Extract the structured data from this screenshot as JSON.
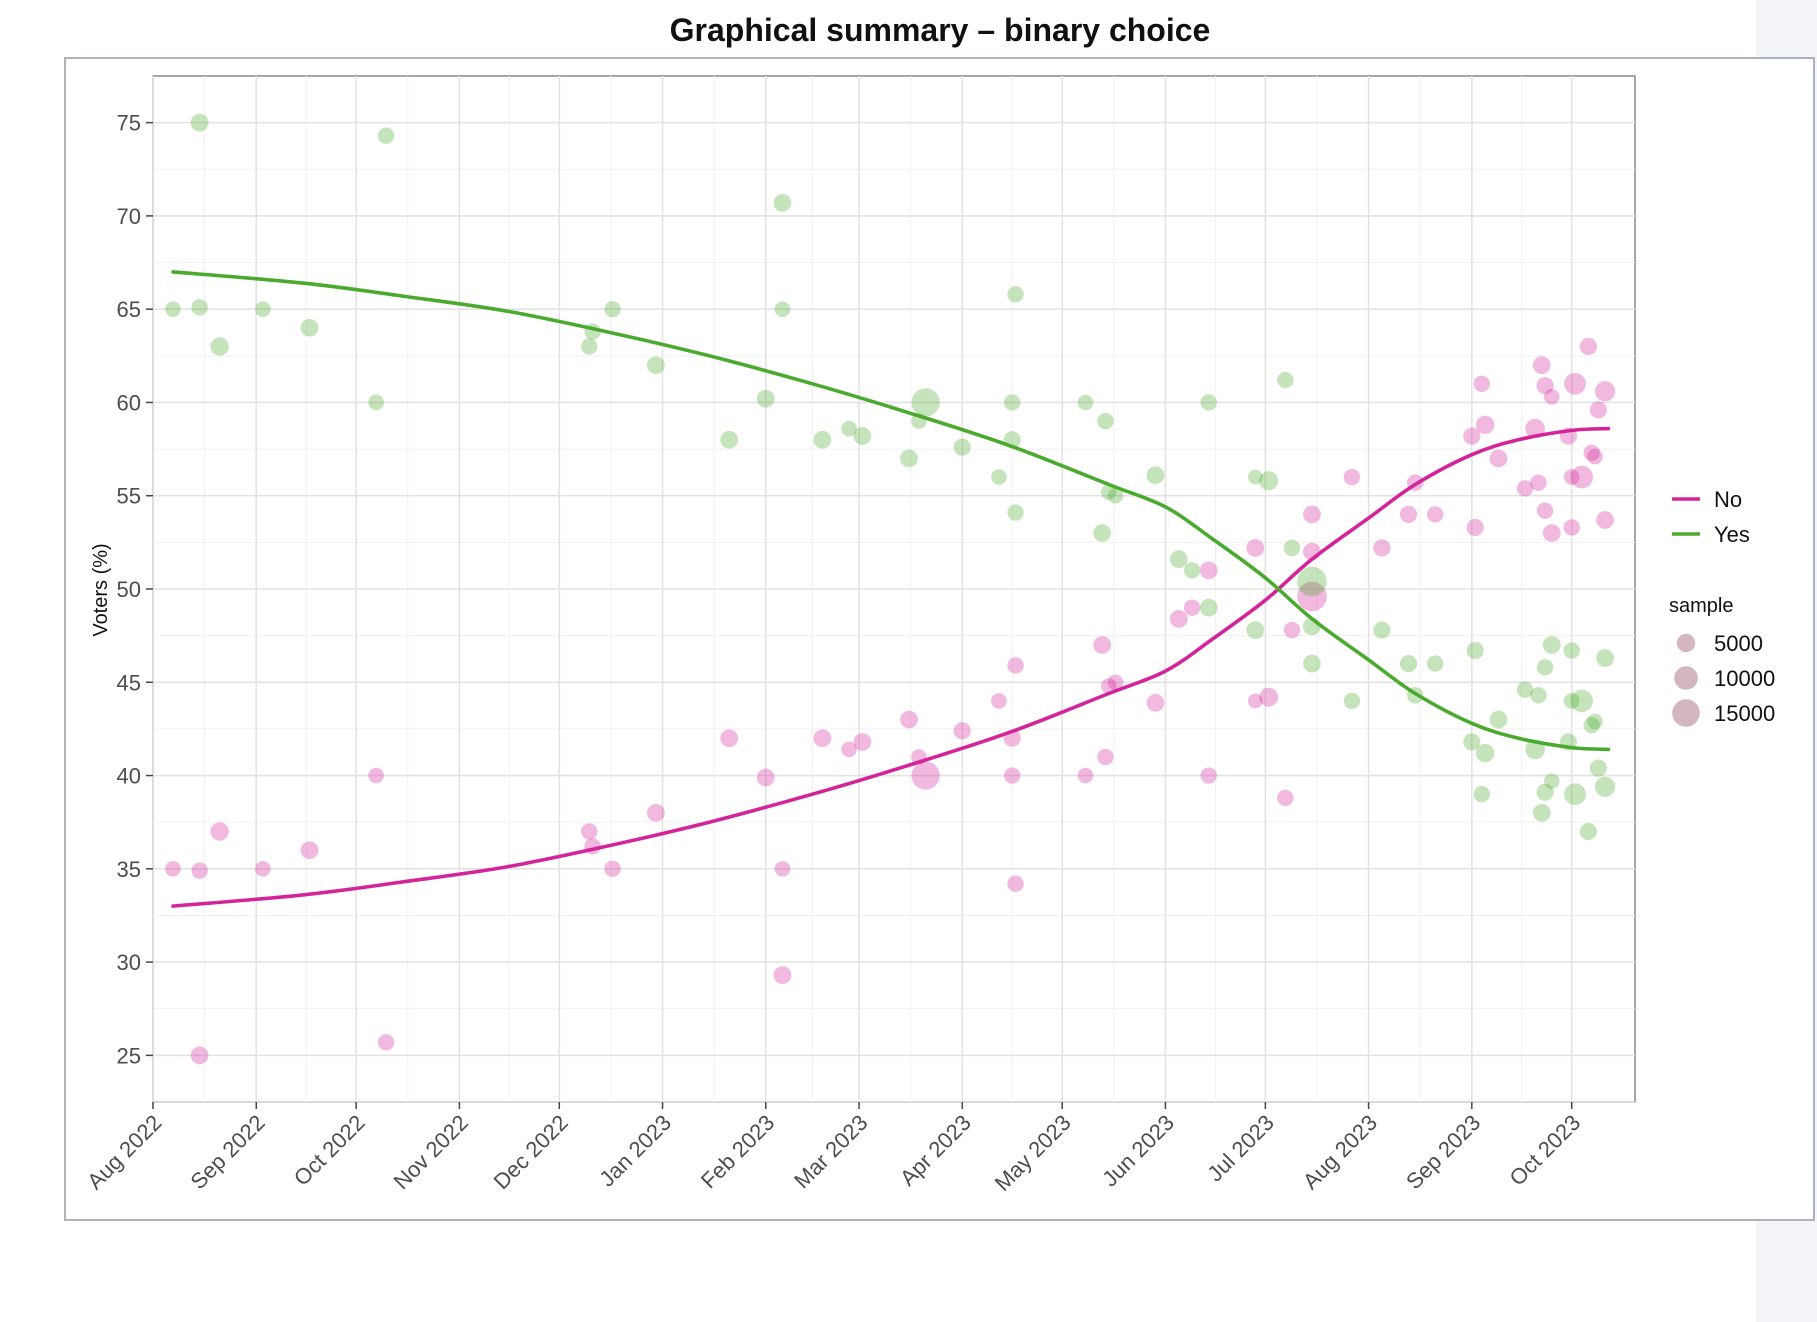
{
  "chart_data": {
    "type": "scatter",
    "title": "Graphical summary – binary choice",
    "ylabel": "Voters (%)",
    "xlabel": "",
    "ylim": [
      22.5,
      77.5
    ],
    "xlim": [
      "2022-08-01",
      "2023-10-20"
    ],
    "y_ticks": [
      25,
      30,
      35,
      40,
      45,
      50,
      55,
      60,
      65,
      70,
      75
    ],
    "x_ticks": [
      {
        "date": "2022-08-01",
        "label": "Aug 2022"
      },
      {
        "date": "2022-09-01",
        "label": "Sep 2022"
      },
      {
        "date": "2022-10-01",
        "label": "Oct 2022"
      },
      {
        "date": "2022-11-01",
        "label": "Nov 2022"
      },
      {
        "date": "2022-12-01",
        "label": "Dec 2022"
      },
      {
        "date": "2023-01-01",
        "label": "Jan 2023"
      },
      {
        "date": "2023-02-01",
        "label": "Feb 2023"
      },
      {
        "date": "2023-03-01",
        "label": "Mar 2023"
      },
      {
        "date": "2023-04-01",
        "label": "Apr 2023"
      },
      {
        "date": "2023-05-01",
        "label": "May 2023"
      },
      {
        "date": "2023-06-01",
        "label": "Jun 2023"
      },
      {
        "date": "2023-07-01",
        "label": "Jul 2023"
      },
      {
        "date": "2023-08-01",
        "label": "Aug 2023"
      },
      {
        "date": "2023-09-01",
        "label": "Sep 2023"
      },
      {
        "date": "2023-10-01",
        "label": "Oct 2023"
      }
    ],
    "grid": true,
    "legend_position": "right",
    "size_legend": {
      "title": "sample",
      "values": [
        5000,
        10000,
        15000
      ],
      "color": "#b07a88"
    },
    "series": [
      {
        "name": "No",
        "color": "#d4249a",
        "trend": [
          [
            "2022-08-07",
            33.0
          ],
          [
            "2022-09-15",
            33.6
          ],
          [
            "2022-10-15",
            34.3
          ],
          [
            "2022-11-15",
            35.1
          ],
          [
            "2022-12-15",
            36.2
          ],
          [
            "2023-01-15",
            37.5
          ],
          [
            "2023-02-15",
            39.0
          ],
          [
            "2023-03-15",
            40.5
          ],
          [
            "2023-04-15",
            42.3
          ],
          [
            "2023-05-15",
            44.4
          ],
          [
            "2023-06-01",
            45.6
          ],
          [
            "2023-06-15",
            47.3
          ],
          [
            "2023-07-01",
            49.4
          ],
          [
            "2023-07-15",
            51.6
          ],
          [
            "2023-08-01",
            53.8
          ],
          [
            "2023-08-15",
            55.6
          ],
          [
            "2023-09-01",
            57.2
          ],
          [
            "2023-09-15",
            58.0
          ],
          [
            "2023-10-01",
            58.5
          ],
          [
            "2023-10-12",
            58.6
          ]
        ],
        "points": [
          [
            "2022-08-07",
            35.0,
            3000
          ],
          [
            "2022-08-15",
            34.9,
            3500
          ],
          [
            "2022-08-15",
            25.0,
            4500
          ],
          [
            "2022-08-21",
            37.0,
            5000
          ],
          [
            "2022-09-03",
            35.0,
            3000
          ],
          [
            "2022-09-17",
            36.0,
            4500
          ],
          [
            "2022-10-07",
            40.0,
            3000
          ],
          [
            "2022-10-10",
            25.7,
            3500
          ],
          [
            "2022-12-10",
            37.0,
            3500
          ],
          [
            "2022-12-11",
            36.2,
            3500
          ],
          [
            "2022-12-17",
            35.0,
            3500
          ],
          [
            "2022-12-30",
            38.0,
            4500
          ],
          [
            "2023-01-21",
            42.0,
            4500
          ],
          [
            "2023-02-01",
            39.9,
            4500
          ],
          [
            "2023-02-06",
            35.0,
            3000
          ],
          [
            "2023-02-06",
            29.3,
            4500
          ],
          [
            "2023-02-18",
            42.0,
            4500
          ],
          [
            "2023-02-26",
            41.4,
            3000
          ],
          [
            "2023-03-02",
            41.8,
            4500
          ],
          [
            "2023-03-16",
            43.0,
            4500
          ],
          [
            "2023-03-19",
            41.0,
            3000
          ],
          [
            "2023-03-21",
            40.0,
            16000
          ],
          [
            "2023-04-01",
            42.4,
            4000
          ],
          [
            "2023-04-12",
            44.0,
            3000
          ],
          [
            "2023-04-16",
            42.0,
            4000
          ],
          [
            "2023-04-16",
            40.0,
            3500
          ],
          [
            "2023-04-17",
            45.9,
            3500
          ],
          [
            "2023-04-17",
            34.2,
            3500
          ],
          [
            "2023-05-08",
            40.0,
            3000
          ],
          [
            "2023-05-13",
            47.0,
            4500
          ],
          [
            "2023-05-14",
            41.0,
            3500
          ],
          [
            "2023-05-15",
            44.8,
            3000
          ],
          [
            "2023-05-17",
            45.0,
            3000
          ],
          [
            "2023-05-29",
            43.9,
            4500
          ],
          [
            "2023-06-05",
            48.4,
            4500
          ],
          [
            "2023-06-09",
            49.0,
            3500
          ],
          [
            "2023-06-14",
            51.0,
            4500
          ],
          [
            "2023-06-14",
            40.0,
            3500
          ],
          [
            "2023-06-28",
            52.2,
            4500
          ],
          [
            "2023-06-28",
            44.0,
            2500
          ],
          [
            "2023-07-02",
            44.2,
            5500
          ],
          [
            "2023-07-07",
            38.8,
            3500
          ],
          [
            "2023-07-09",
            47.8,
            3500
          ],
          [
            "2023-07-15",
            54.0,
            4500
          ],
          [
            "2023-07-15",
            52.0,
            4500
          ],
          [
            "2023-07-15",
            49.6,
            18000
          ],
          [
            "2023-07-27",
            56.0,
            3500
          ],
          [
            "2023-08-05",
            52.2,
            4000
          ],
          [
            "2023-08-13",
            54.0,
            4000
          ],
          [
            "2023-08-15",
            55.7,
            3500
          ],
          [
            "2023-08-21",
            54.0,
            3500
          ],
          [
            "2023-09-01",
            58.2,
            4000
          ],
          [
            "2023-09-02",
            53.3,
            4000
          ],
          [
            "2023-09-04",
            61.0,
            3500
          ],
          [
            "2023-09-05",
            58.8,
            5000
          ],
          [
            "2023-09-09",
            57.0,
            4500
          ],
          [
            "2023-09-17",
            55.4,
            3500
          ],
          [
            "2023-09-20",
            58.6,
            6000
          ],
          [
            "2023-09-21",
            55.7,
            3500
          ],
          [
            "2023-09-22",
            62.0,
            4500
          ],
          [
            "2023-09-23",
            60.9,
            4000
          ],
          [
            "2023-09-23",
            54.2,
            3500
          ],
          [
            "2023-09-25",
            60.3,
            3000
          ],
          [
            "2023-09-25",
            53.0,
            4500
          ],
          [
            "2023-09-30",
            58.2,
            4000
          ],
          [
            "2023-10-01",
            56.0,
            3000
          ],
          [
            "2023-10-01",
            53.3,
            3500
          ],
          [
            "2023-10-02",
            61.0,
            8000
          ],
          [
            "2023-10-04",
            56.0,
            9000
          ],
          [
            "2023-10-06",
            63.0,
            4000
          ],
          [
            "2023-10-07",
            57.3,
            3500
          ],
          [
            "2023-10-08",
            57.1,
            3000
          ],
          [
            "2023-10-09",
            59.6,
            4000
          ],
          [
            "2023-10-11",
            60.6,
            6500
          ],
          [
            "2023-10-11",
            53.7,
            4500
          ]
        ]
      },
      {
        "name": "Yes",
        "color": "#4aaa2e",
        "trend": [
          [
            "2022-08-07",
            67.0
          ],
          [
            "2022-09-15",
            66.4
          ],
          [
            "2022-10-15",
            65.7
          ],
          [
            "2022-11-15",
            64.9
          ],
          [
            "2022-12-15",
            63.8
          ],
          [
            "2023-01-15",
            62.5
          ],
          [
            "2023-02-15",
            61.0
          ],
          [
            "2023-03-15",
            59.5
          ],
          [
            "2023-04-15",
            57.7
          ],
          [
            "2023-05-15",
            55.6
          ],
          [
            "2023-06-01",
            54.4
          ],
          [
            "2023-06-15",
            52.7
          ],
          [
            "2023-07-01",
            50.6
          ],
          [
            "2023-07-15",
            48.4
          ],
          [
            "2023-08-01",
            46.2
          ],
          [
            "2023-08-15",
            44.4
          ],
          [
            "2023-09-01",
            42.8
          ],
          [
            "2023-09-15",
            42.0
          ],
          [
            "2023-10-01",
            41.5
          ],
          [
            "2023-10-12",
            41.4
          ]
        ],
        "points": [
          [
            "2022-08-07",
            65.0,
            3000
          ],
          [
            "2022-08-15",
            65.1,
            3500
          ],
          [
            "2022-08-15",
            75.0,
            4500
          ],
          [
            "2022-08-21",
            63.0,
            5000
          ],
          [
            "2022-09-03",
            65.0,
            3000
          ],
          [
            "2022-09-17",
            64.0,
            4500
          ],
          [
            "2022-10-07",
            60.0,
            3000
          ],
          [
            "2022-10-10",
            74.3,
            3500
          ],
          [
            "2022-12-10",
            63.0,
            3500
          ],
          [
            "2022-12-11",
            63.8,
            3500
          ],
          [
            "2022-12-17",
            65.0,
            3500
          ],
          [
            "2022-12-30",
            62.0,
            4500
          ],
          [
            "2023-01-21",
            58.0,
            4500
          ],
          [
            "2023-02-01",
            60.2,
            4500
          ],
          [
            "2023-02-06",
            65.0,
            3000
          ],
          [
            "2023-02-06",
            70.7,
            4500
          ],
          [
            "2023-02-18",
            58.0,
            4500
          ],
          [
            "2023-02-26",
            58.6,
            3000
          ],
          [
            "2023-03-02",
            58.2,
            4500
          ],
          [
            "2023-03-16",
            57.0,
            4500
          ],
          [
            "2023-03-19",
            59.0,
            3000
          ],
          [
            "2023-03-21",
            60.0,
            16000
          ],
          [
            "2023-04-01",
            57.6,
            4000
          ],
          [
            "2023-04-12",
            56.0,
            3000
          ],
          [
            "2023-04-16",
            58.0,
            4000
          ],
          [
            "2023-04-16",
            60.0,
            3500
          ],
          [
            "2023-04-17",
            54.1,
            3500
          ],
          [
            "2023-04-17",
            65.8,
            3500
          ],
          [
            "2023-05-08",
            60.0,
            3000
          ],
          [
            "2023-05-13",
            53.0,
            4500
          ],
          [
            "2023-05-14",
            59.0,
            3500
          ],
          [
            "2023-05-15",
            55.2,
            3000
          ],
          [
            "2023-05-17",
            55.0,
            3000
          ],
          [
            "2023-05-29",
            56.1,
            4500
          ],
          [
            "2023-06-05",
            51.6,
            4500
          ],
          [
            "2023-06-09",
            51.0,
            3500
          ],
          [
            "2023-06-14",
            49.0,
            4500
          ],
          [
            "2023-06-14",
            60.0,
            3500
          ],
          [
            "2023-06-28",
            47.8,
            4500
          ],
          [
            "2023-06-28",
            56.0,
            2500
          ],
          [
            "2023-07-02",
            55.8,
            5500
          ],
          [
            "2023-07-07",
            61.2,
            3500
          ],
          [
            "2023-07-09",
            52.2,
            3500
          ],
          [
            "2023-07-15",
            46.0,
            4500
          ],
          [
            "2023-07-15",
            48.0,
            4500
          ],
          [
            "2023-07-15",
            50.4,
            18000
          ],
          [
            "2023-07-27",
            44.0,
            3500
          ],
          [
            "2023-08-05",
            47.8,
            4000
          ],
          [
            "2023-08-13",
            46.0,
            4000
          ],
          [
            "2023-08-15",
            44.3,
            3500
          ],
          [
            "2023-08-21",
            46.0,
            3500
          ],
          [
            "2023-09-01",
            41.8,
            4000
          ],
          [
            "2023-09-02",
            46.7,
            4000
          ],
          [
            "2023-09-04",
            39.0,
            3500
          ],
          [
            "2023-09-05",
            41.2,
            5000
          ],
          [
            "2023-09-09",
            43.0,
            4500
          ],
          [
            "2023-09-17",
            44.6,
            3500
          ],
          [
            "2023-09-20",
            41.4,
            6000
          ],
          [
            "2023-09-21",
            44.3,
            3500
          ],
          [
            "2023-09-22",
            38.0,
            4500
          ],
          [
            "2023-09-23",
            39.1,
            4000
          ],
          [
            "2023-09-23",
            45.8,
            3500
          ],
          [
            "2023-09-25",
            39.7,
            3000
          ],
          [
            "2023-09-25",
            47.0,
            4500
          ],
          [
            "2023-09-30",
            41.8,
            4000
          ],
          [
            "2023-10-01",
            44.0,
            3000
          ],
          [
            "2023-10-01",
            46.7,
            3500
          ],
          [
            "2023-10-02",
            39.0,
            8000
          ],
          [
            "2023-10-04",
            44.0,
            9000
          ],
          [
            "2023-10-06",
            37.0,
            4000
          ],
          [
            "2023-10-07",
            42.7,
            3500
          ],
          [
            "2023-10-08",
            42.9,
            3000
          ],
          [
            "2023-10-09",
            40.4,
            4000
          ],
          [
            "2023-10-11",
            39.4,
            6500
          ],
          [
            "2023-10-11",
            46.3,
            4500
          ]
        ]
      }
    ]
  }
}
